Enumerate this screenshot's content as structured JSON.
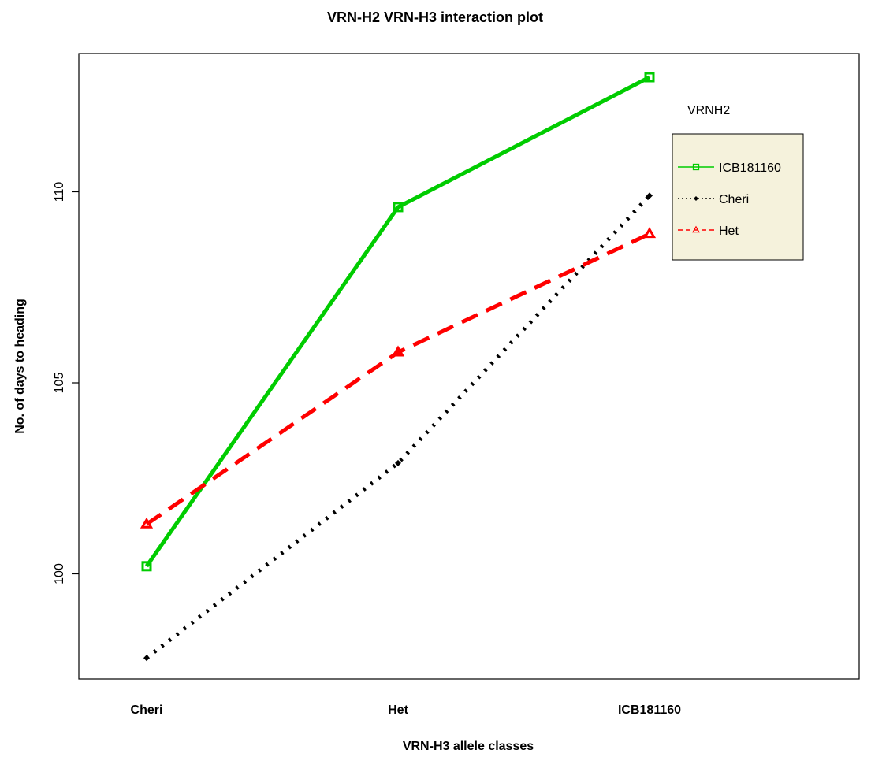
{
  "chart_data": {
    "type": "line",
    "title": "VRN-H2 VRN-H3 interaction plot",
    "xlabel": "VRN-H3 allele classes",
    "ylabel": "No. of days to heading",
    "categories": [
      "Cheri",
      "Het",
      "ICB181160"
    ],
    "yticks": [
      "100",
      "105",
      "110"
    ],
    "ylim": [
      97.8,
      113.6
    ],
    "grid": false,
    "legend": {
      "title": "VRNH2",
      "placement": "top-right",
      "background": "#f5f2dc"
    },
    "series": [
      {
        "name": "ICB181160",
        "values": [
          100.2,
          109.6,
          113.0
        ],
        "color": "#00cc00",
        "dash": "solid",
        "marker": "square"
      },
      {
        "name": "Cheri",
        "values": [
          97.8,
          102.9,
          109.9
        ],
        "color": "#000000",
        "dash": "dotted",
        "marker": "diamond"
      },
      {
        "name": "Het",
        "values": [
          101.3,
          105.8,
          108.9
        ],
        "color": "#ff0000",
        "dash": "dashed",
        "marker": "triangle"
      }
    ]
  }
}
